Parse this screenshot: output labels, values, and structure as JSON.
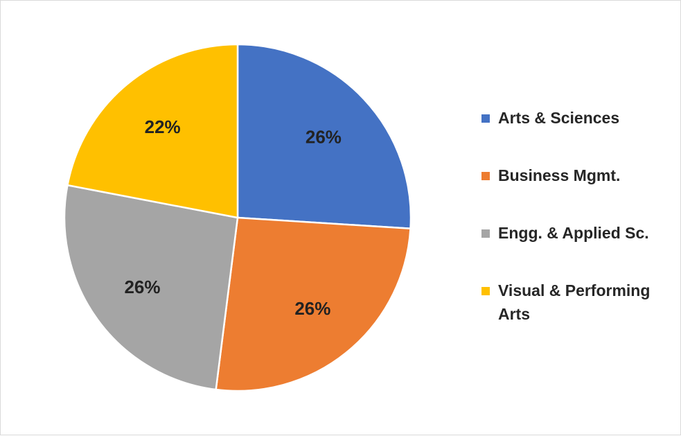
{
  "chart_data": {
    "type": "pie",
    "start": "12 o'clock, clockwise",
    "categories": [
      "Arts & Sciences",
      "Business Mgmt.",
      "Engg. & Applied Sc.",
      "Visual & Performing Arts"
    ],
    "values": [
      26,
      26,
      26,
      22
    ],
    "labels": [
      "26%",
      "26%",
      "26%",
      "22%"
    ],
    "colors": [
      "#4472C4",
      "#ED7D31",
      "#A5A5A5",
      "#FFC000"
    ],
    "legend_position": "right"
  }
}
